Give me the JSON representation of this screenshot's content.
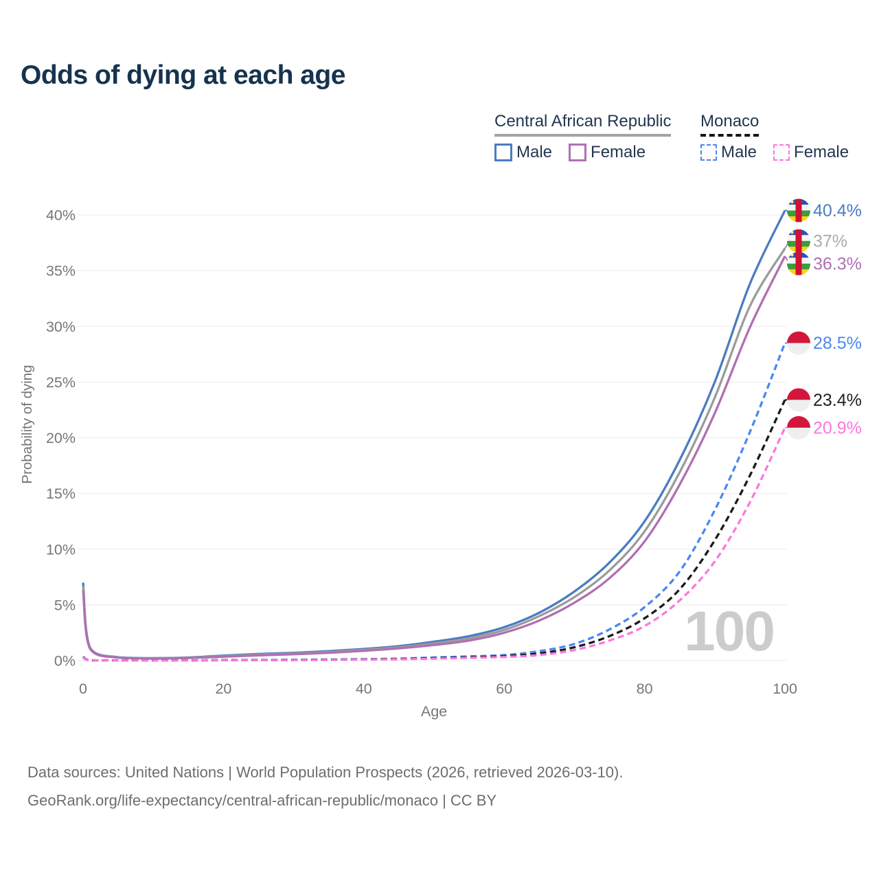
{
  "title": "Odds of dying at each age",
  "legend": {
    "groups": [
      {
        "name": "Central African Republic",
        "underline_color": "#a3a3a3",
        "dashed": false,
        "items": [
          {
            "label": "Male",
            "color": "#4a7cc2"
          },
          {
            "label": "Female",
            "color": "#b06fb2"
          }
        ]
      },
      {
        "name": "Monaco",
        "underline_color": "#141414",
        "dashed": true,
        "items": [
          {
            "label": "Male",
            "color": "#4b87f0"
          },
          {
            "label": "Female",
            "color": "#fb78de"
          }
        ]
      }
    ]
  },
  "chart_data": {
    "type": "line",
    "title": "Odds of dying at each age",
    "xlabel": "Age",
    "ylabel": "Probability of dying",
    "xlim": [
      0,
      100
    ],
    "ylim": [
      0,
      42
    ],
    "x_ticks": [
      0,
      20,
      40,
      60,
      80,
      100
    ],
    "y_tick_labels": [
      "0%",
      "5%",
      "10%",
      "15%",
      "20%",
      "25%",
      "30%",
      "35%",
      "40%"
    ],
    "grid": "horizontal-only",
    "legend_position": "top-right",
    "watermark": "100",
    "x": [
      0,
      1,
      5,
      10,
      15,
      20,
      25,
      30,
      35,
      40,
      45,
      50,
      55,
      60,
      65,
      70,
      75,
      80,
      85,
      90,
      95,
      100
    ],
    "series": [
      {
        "name": "Central African Republic Male",
        "color": "#4a7cc2",
        "dash": false,
        "flag": "central-african-republic",
        "end_label": "40.4%",
        "label_color": "#4a7cc2",
        "values": [
          7.0,
          1.15,
          0.3,
          0.22,
          0.28,
          0.45,
          0.6,
          0.7,
          0.85,
          1.05,
          1.3,
          1.7,
          2.2,
          3.0,
          4.3,
          6.2,
          8.8,
          12.5,
          18.0,
          25.0,
          33.8,
          40.4
        ]
      },
      {
        "name": "Central African Republic Both sexes",
        "color": "#9b9b9b",
        "dash": false,
        "flag": "central-african-republic",
        "end_label": "37%",
        "label_color": "#ababab",
        "values": [
          6.7,
          1.1,
          0.28,
          0.2,
          0.26,
          0.4,
          0.54,
          0.64,
          0.78,
          0.97,
          1.2,
          1.55,
          2.0,
          2.75,
          4.0,
          5.7,
          8.1,
          11.6,
          16.9,
          23.6,
          31.8,
          37.0
        ]
      },
      {
        "name": "Central African Republic Female",
        "color": "#b06fb2",
        "dash": false,
        "flag": "central-african-republic",
        "end_label": "36.3%",
        "label_color": "#b06fb2",
        "values": [
          6.3,
          1.05,
          0.26,
          0.18,
          0.23,
          0.35,
          0.47,
          0.57,
          0.7,
          0.88,
          1.1,
          1.4,
          1.8,
          2.5,
          3.6,
          5.2,
          7.4,
          10.7,
          15.8,
          22.2,
          29.9,
          36.3
        ]
      },
      {
        "name": "Monaco Male",
        "color": "#4b87f0",
        "dash": true,
        "flag": "monaco",
        "end_label": "28.5%",
        "label_color": "#4b87f0",
        "values": [
          0.35,
          0.03,
          0.01,
          0.01,
          0.02,
          0.05,
          0.06,
          0.08,
          0.1,
          0.13,
          0.18,
          0.28,
          0.38,
          0.5,
          0.85,
          1.5,
          2.8,
          4.8,
          8.0,
          13.5,
          20.5,
          28.5
        ]
      },
      {
        "name": "Monaco Both sexes",
        "color": "#1b1b1b",
        "dash": true,
        "flag": "monaco",
        "end_label": "23.4%",
        "label_color": "#222222",
        "values": [
          0.3,
          0.025,
          0.009,
          0.009,
          0.016,
          0.04,
          0.05,
          0.06,
          0.08,
          0.11,
          0.15,
          0.22,
          0.3,
          0.4,
          0.65,
          1.2,
          2.2,
          3.8,
          6.4,
          10.8,
          16.6,
          23.4
        ]
      },
      {
        "name": "Monaco Female",
        "color": "#fb78de",
        "dash": true,
        "flag": "monaco",
        "end_label": "20.9%",
        "label_color": "#fb78de",
        "values": [
          0.27,
          0.02,
          0.008,
          0.008,
          0.013,
          0.03,
          0.04,
          0.05,
          0.06,
          0.09,
          0.12,
          0.18,
          0.25,
          0.33,
          0.5,
          0.95,
          1.8,
          3.1,
          5.4,
          8.9,
          14.2,
          20.9
        ]
      }
    ],
    "flag_colors": {
      "central-african-republic": {
        "blue": "#2c52b0",
        "white": "#f4f4f4",
        "green": "#3d9c3d",
        "yellow": "#ffd117",
        "red": "#d21034",
        "star": "#ffe96b"
      },
      "monaco": {
        "red": "#d3173c",
        "white": "#efefef"
      }
    },
    "axis_color": "#767676",
    "grid_color": "#ebebeb",
    "watermark_color": "#cccccc"
  },
  "footer": {
    "line1": "Data sources: United Nations | World Population Prospects (2026, retrieved 2026-03-10).",
    "line2": "GeoRank.org/life-expectancy/central-african-republic/monaco | CC BY"
  }
}
